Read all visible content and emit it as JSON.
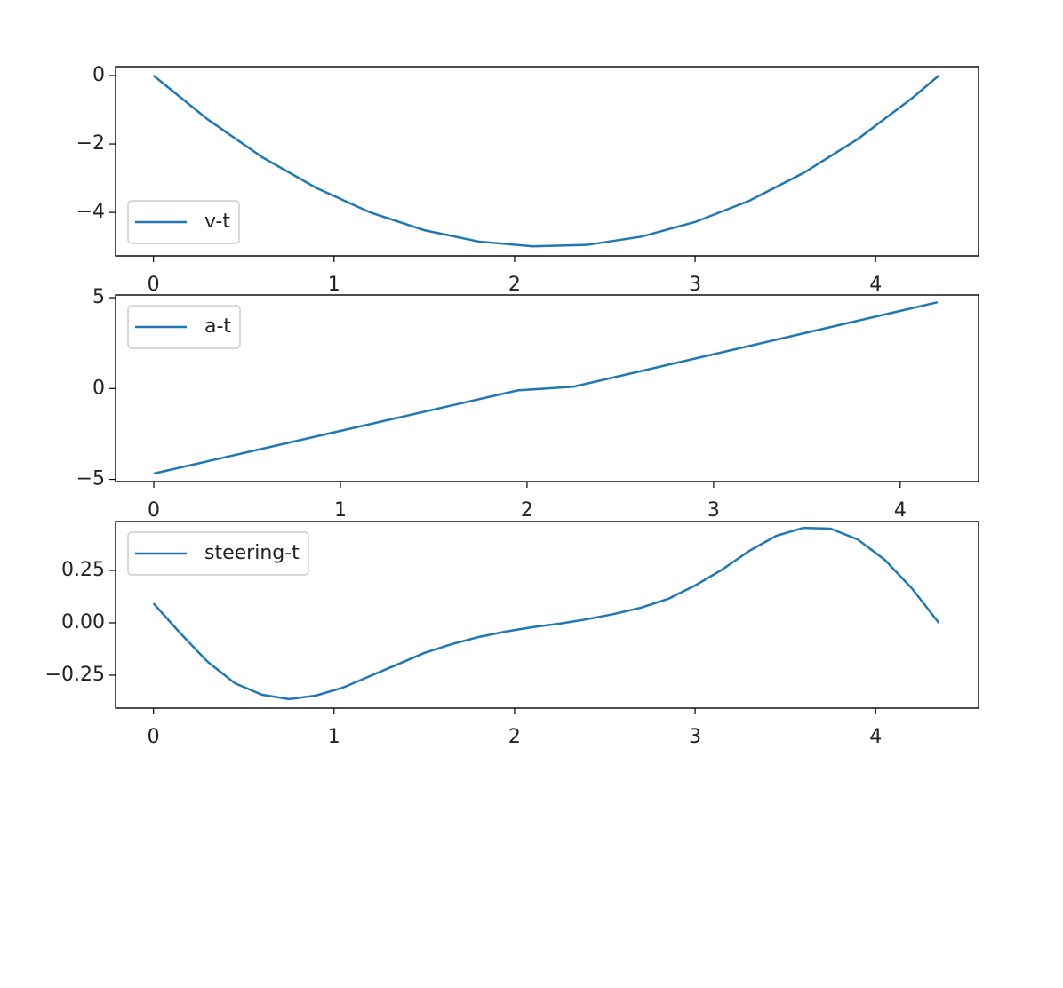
{
  "chart_data": [
    {
      "type": "line",
      "x": [
        0,
        0.3,
        0.6,
        0.9,
        1.2,
        1.5,
        1.8,
        2.1,
        2.4,
        2.7,
        3.0,
        3.3,
        3.6,
        3.9,
        4.2,
        4.35
      ],
      "series": [
        {
          "name": "v-t",
          "color": "#1f77b4",
          "values": [
            0,
            -1.28,
            -2.38,
            -3.28,
            -4.0,
            -4.52,
            -4.85,
            -4.99,
            -4.95,
            -4.71,
            -4.28,
            -3.66,
            -2.85,
            -1.86,
            -0.67,
            0
          ]
        }
      ],
      "xlim": [
        -0.21,
        4.57
      ],
      "xticks": [
        0,
        1,
        2,
        3,
        4
      ],
      "ylim": [
        -5.27,
        0.26
      ],
      "yticks": [
        {
          "value": -4,
          "label": "−4"
        },
        {
          "value": -2,
          "label": "−2"
        },
        0
      ],
      "legend": "lower left"
    },
    {
      "type": "line",
      "x": [
        0,
        1.95,
        2.25,
        4.2
      ],
      "series": [
        {
          "name": "a-t",
          "color": "#1f77b4",
          "values": [
            -4.68,
            -0.1,
            0.1,
            4.75
          ]
        }
      ],
      "xlim": [
        -0.205,
        4.42
      ],
      "xticks": [
        0,
        1,
        2,
        3,
        4
      ],
      "ylim": [
        -5.12,
        5.15
      ],
      "yticks": [
        {
          "value": -5,
          "label": "−5"
        },
        0,
        5
      ],
      "legend": "upper left"
    },
    {
      "type": "line",
      "x": [
        0,
        0.15,
        0.3,
        0.45,
        0.6,
        0.75,
        0.9,
        1.05,
        1.2,
        1.35,
        1.5,
        1.65,
        1.8,
        1.95,
        2.1,
        2.25,
        2.4,
        2.55,
        2.7,
        2.85,
        3.0,
        3.15,
        3.3,
        3.45,
        3.6,
        3.75,
        3.9,
        4.05,
        4.2,
        4.35
      ],
      "series": [
        {
          "name": "steering-t",
          "color": "#1f77b4",
          "values": [
            0.093,
            -0.051,
            -0.186,
            -0.288,
            -0.343,
            -0.364,
            -0.347,
            -0.309,
            -0.254,
            -0.199,
            -0.144,
            -0.102,
            -0.068,
            -0.042,
            -0.021,
            -0.004,
            0.017,
            0.042,
            0.072,
            0.114,
            0.178,
            0.254,
            0.343,
            0.415,
            0.453,
            0.449,
            0.398,
            0.301,
            0.165,
            0.0
          ]
        }
      ],
      "xlim": [
        -0.21,
        4.57
      ],
      "xticks": [
        0,
        1,
        2,
        3,
        4
      ],
      "ylim": [
        -0.407,
        0.483
      ],
      "yticks": [
        {
          "value": -0.25,
          "label": "−0.25"
        },
        {
          "value": 0,
          "label": "0.00"
        },
        0.25
      ],
      "legend": "upper left"
    }
  ]
}
